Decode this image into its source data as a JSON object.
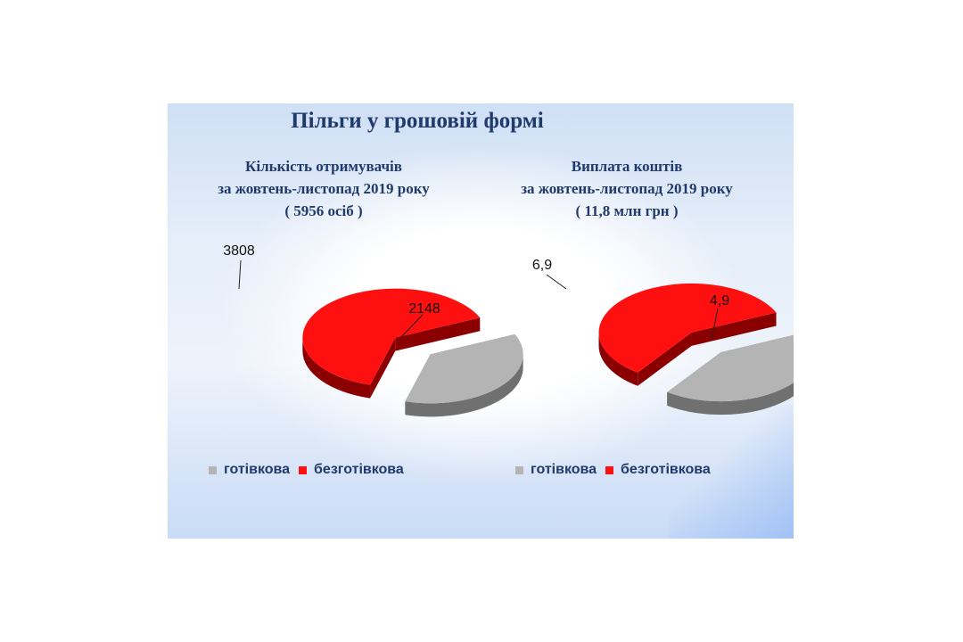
{
  "title": "Пільги у грошовій формі",
  "colors": {
    "cash": "#b4b4b4",
    "cash_dark": "#707070",
    "noncash": "#ff1010",
    "noncash_dark": "#8a0000",
    "text": "#1f3a6b"
  },
  "chart_data": [
    {
      "type": "pie",
      "title_lines": [
        "Кількість отримувачів",
        "за жовтень-листопад 2019 року",
        "( 5956 осіб )"
      ],
      "categories": [
        "готівкова",
        "безготівкова"
      ],
      "values": [
        2148,
        3808
      ],
      "labels": [
        "2148",
        "3808"
      ],
      "legend": "bottom"
    },
    {
      "type": "pie",
      "title_lines": [
        "Виплата коштів",
        "за жовтень-листопад 2019 року",
        "( 11,8 млн грн )"
      ],
      "categories": [
        "готівкова",
        "безготівкова"
      ],
      "values": [
        4.9,
        6.9
      ],
      "labels": [
        "4,9",
        "6,9"
      ],
      "legend": "bottom"
    }
  ]
}
